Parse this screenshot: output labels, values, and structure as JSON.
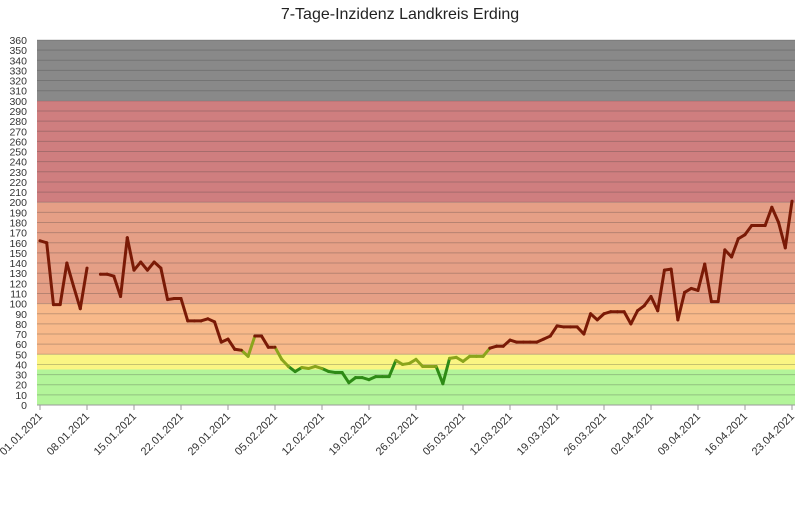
{
  "chart_data": {
    "type": "line",
    "title": "7-Tage-Inzidenz Landkreis Erding",
    "xlabel": "",
    "ylabel": "",
    "ylim": [
      0,
      360
    ],
    "ytick_step": 10,
    "grid": true,
    "legend": "none",
    "x_tick_labels": [
      "01.01.2021",
      "08.01.2021",
      "15.01.2021",
      "22.01.2021",
      "29.01.2021",
      "05.02.2021",
      "12.02.2021",
      "19.02.2021",
      "26.02.2021",
      "05.03.2021",
      "12.03.2021",
      "19.03.2021",
      "26.03.2021",
      "02.04.2021",
      "09.04.2021",
      "16.04.2021",
      "23.04.2021"
    ],
    "background_bands": [
      {
        "from": 0,
        "to": 35,
        "color": "#b3f59a"
      },
      {
        "from": 35,
        "to": 50,
        "color": "#fbf583"
      },
      {
        "from": 50,
        "to": 100,
        "color": "#f8b98a"
      },
      {
        "from": 100,
        "to": 200,
        "color": "#e59f86"
      },
      {
        "from": 200,
        "to": 300,
        "color": "#cf7e7f"
      },
      {
        "from": 300,
        "to": 360,
        "color": "#898989"
      }
    ],
    "line_colors": {
      "below_35": "#2e8b16",
      "between_35_50": "#8ba51c",
      "above_50": "#7a1a06"
    },
    "series": [
      {
        "dates": [
          "01.01.2021",
          "02.01.2021",
          "03.01.2021",
          "04.01.2021",
          "05.01.2021",
          "06.01.2021",
          "07.01.2021",
          "08.01.2021",
          "09.01.2021",
          "10.01.2021",
          "11.01.2021",
          "12.01.2021",
          "13.01.2021",
          "14.01.2021",
          "15.01.2021",
          "16.01.2021",
          "17.01.2021",
          "18.01.2021",
          "19.01.2021",
          "20.01.2021",
          "21.01.2021",
          "22.01.2021",
          "23.01.2021",
          "24.01.2021",
          "25.01.2021",
          "26.01.2021",
          "27.01.2021",
          "28.01.2021",
          "29.01.2021",
          "30.01.2021",
          "31.01.2021",
          "01.02.2021",
          "02.02.2021",
          "03.02.2021",
          "04.02.2021",
          "05.02.2021",
          "06.02.2021",
          "07.02.2021",
          "08.02.2021",
          "09.02.2021",
          "10.02.2021",
          "11.02.2021",
          "12.02.2021",
          "13.02.2021",
          "14.02.2021",
          "15.02.2021",
          "16.02.2021",
          "17.02.2021",
          "18.02.2021",
          "19.02.2021",
          "20.02.2021",
          "21.02.2021",
          "22.02.2021",
          "23.02.2021",
          "24.02.2021",
          "25.02.2021",
          "26.02.2021",
          "27.02.2021",
          "28.02.2021",
          "01.03.2021",
          "02.03.2021",
          "03.03.2021",
          "04.03.2021",
          "05.03.2021",
          "06.03.2021",
          "07.03.2021",
          "08.03.2021",
          "09.03.2021",
          "10.03.2021",
          "11.03.2021",
          "12.03.2021",
          "13.03.2021",
          "14.03.2021",
          "15.03.2021",
          "16.03.2021",
          "17.03.2021",
          "18.03.2021",
          "19.03.2021",
          "20.03.2021",
          "21.03.2021",
          "22.03.2021",
          "23.03.2021",
          "24.03.2021",
          "25.03.2021",
          "26.03.2021",
          "27.03.2021",
          "28.03.2021",
          "29.03.2021",
          "30.03.2021",
          "31.03.2021",
          "01.04.2021",
          "02.04.2021",
          "03.04.2021",
          "04.04.2021",
          "05.04.2021",
          "06.04.2021",
          "07.04.2021",
          "08.04.2021",
          "09.04.2021",
          "10.04.2021",
          "11.04.2021",
          "12.04.2021",
          "13.04.2021",
          "14.04.2021",
          "15.04.2021",
          "16.04.2021",
          "17.04.2021",
          "18.04.2021",
          "19.04.2021",
          "20.04.2021",
          "21.04.2021",
          "22.04.2021",
          "23.04.2021"
        ],
        "values": [
          162,
          160,
          99,
          99,
          140,
          117,
          95,
          135,
          null,
          129,
          129,
          127,
          107,
          165,
          133,
          141,
          133,
          141,
          135,
          104,
          105,
          105,
          83,
          83,
          83,
          85,
          82,
          62,
          65,
          55,
          54,
          48,
          68,
          68,
          57,
          57,
          45,
          38,
          33,
          37,
          36,
          38,
          36,
          33,
          32,
          32,
          22,
          27,
          27,
          25,
          28,
          28,
          28,
          44,
          40,
          41,
          45,
          38,
          38,
          38,
          21,
          46,
          47,
          43,
          48,
          48,
          48,
          56,
          58,
          58,
          64,
          62,
          62,
          62,
          62,
          65,
          68,
          78,
          77,
          77,
          77,
          70,
          90,
          84,
          90,
          92,
          92,
          92,
          80,
          93,
          98,
          107,
          93,
          133,
          134,
          84,
          111,
          115,
          113,
          139,
          102,
          102,
          153,
          146,
          164,
          168,
          177,
          177,
          177,
          195,
          180,
          155,
          201
        ]
      }
    ]
  }
}
